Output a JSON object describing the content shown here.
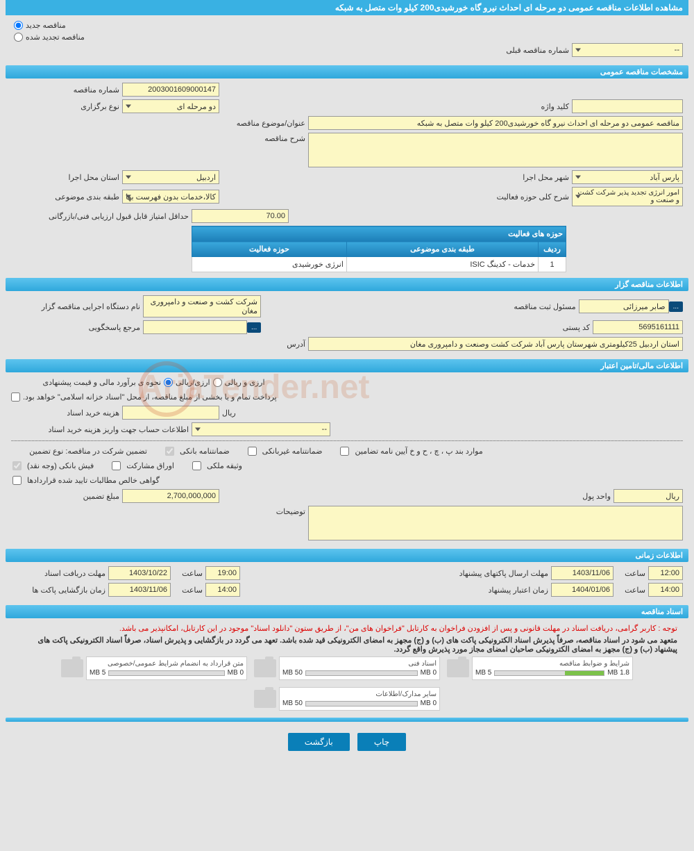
{
  "header": {
    "title": "مشاهده اطلاعات مناقصه عمومی دو مرحله ای احداث نیرو گاه خورشیدی200 کیلو وات متصل به شبکه"
  },
  "tender_type": {
    "new_label": "مناقصه جدید",
    "renewed_label": "مناقصه تجدید شده",
    "prev_number_label": "شماره مناقصه قبلی",
    "prev_number_value": "--"
  },
  "section1": {
    "title": "مشخصات مناقصه عمومی",
    "tender_no_label": "شماره مناقصه",
    "tender_no": "2003001609000147",
    "type_label": "نوع برگزاری",
    "type_value": "دو مرحله ای",
    "keyword_label": "کلید واژه",
    "keyword_value": "",
    "subject_label": "عنوان/موضوع مناقصه",
    "subject_value": "مناقصه عمومی دو مرحله ای احداث نیرو گاه خورشیدی200 کیلو وات متصل به شبکه",
    "desc_label": "شرح مناقصه",
    "desc_value": "",
    "province_label": "استان محل اجرا",
    "province_value": "اردبیل",
    "city_label": "شهر محل اجرا",
    "city_value": "پارس آباد",
    "category_label": "طبقه بندی موضوعی",
    "category_value": "کالا،خدمات بدون فهرست بها",
    "activity_scope_label": "شرح کلی حوزه فعالیت",
    "activity_scope_value": "امور انرژی تجدید پذیر\nشرکت کشت و صنعت و",
    "min_score_label": "حداقل امتیاز قابل قبول ارزیابی فنی/بازرگانی",
    "min_score_value": "70.00",
    "activity_table": {
      "caption": "حوزه های فعالیت",
      "cols": [
        "ردیف",
        "طبقه بندی موضوعی",
        "حوزه فعالیت"
      ],
      "rows": [
        [
          "1",
          "خدمات - کدینگ ISIC",
          "انرژی خورشیدی"
        ]
      ]
    }
  },
  "section2": {
    "title": "اطلاعات مناقصه گزار",
    "org_label": "نام دستگاه اجرایی مناقصه گزار",
    "org_value": "شرکت کشت و صنعت و دامپروری مغان",
    "registrar_label": "مسئول ثبت مناقصه",
    "registrar_value": "صابر میرزائی",
    "responder_label": "مرجع پاسخگویی",
    "responder_value": "",
    "postal_label": "کد پستی",
    "postal_value": "5695161111",
    "address_label": "آدرس",
    "address_value": "استان اردبیل 25کیلومتری شهرستان پارس آباد شرکت کشت وصنعت و دامپروری مغان"
  },
  "section3": {
    "title": "اطلاعات مالی/تامین اعتبار",
    "estimate_label": "نحوه ی برآورد مالی و قیمت پیشنهادی",
    "currency_arzi": "ارزی/ریالی",
    "currency_rial": "ارزی و ریالی",
    "treasury_note": "پرداخت تمام و یا بخشی از مبلغ مناقصه، از محل \"اسناد خزانه اسلامی\" خواهد بود.",
    "doc_fee_label": "هزینه خرید اسناد",
    "doc_fee_value": "",
    "rial": "ریال",
    "account_info_label": "اطلاعات حساب جهت واریز هزینه خرید اسناد",
    "account_info_value": "--",
    "guarantee_type_label": "تضمین شرکت در مناقصه:   نوع تضمین",
    "chk_bank": "ضمانتنامه بانکی",
    "chk_nonbank": "ضمانتنامه غیربانکی",
    "chk_cases": "موارد بند پ ، چ ، ح و خ آیین نامه تضامین",
    "chk_cash": "فیش بانکی (وجه نقد)",
    "chk_bonds": "اوراق مشارکت",
    "chk_property": "وثیقه ملکی",
    "chk_cert": "گواهی خالص مطالبات تایید شده قراردادها",
    "guarantee_amount_label": "مبلغ تضمین",
    "guarantee_amount_value": "2,700,000,000",
    "unit_label": "واحد پول",
    "unit_value": "ریال",
    "notes_label": "توضیحات",
    "notes_value": ""
  },
  "section4": {
    "title": "اطلاعات زمانی",
    "receive_label": "مهلت دریافت اسناد",
    "receive_date": "1403/10/22",
    "receive_time_label": "ساعت",
    "receive_time": "19:00",
    "send_label": "مهلت ارسال پاکتهای پیشنهاد",
    "send_date": "1403/11/06",
    "send_time_label": "ساعت",
    "send_time": "12:00",
    "open_label": "زمان بازگشایی پاکت ها",
    "open_date": "1403/11/06",
    "open_time_label": "ساعت",
    "open_time": "14:00",
    "valid_label": "زمان اعتبار پیشنهاد",
    "valid_date": "1404/01/06",
    "valid_time_label": "ساعت",
    "valid_time": "14:00"
  },
  "section5": {
    "title": "اسناد مناقصه",
    "note1": "توجه : کاربر گرامی، دریافت اسناد در مهلت قانونی و پس از افزودن فراخوان به کارتابل \"فراخوان های من\"، از طریق ستون \"دانلود اسناد\" موجود در این کارتابل، امکانپذیر می باشد.",
    "note2": "متعهد می شود در اسناد مناقصه، صرفاً پذیرش اسناد الکترونیکی پاکت های (ب) و (ج) مجهز به امضای الکترونیکی قید شده باشد. تعهد می گردد در بازگشایی و پذیرش اسناد، صرفاً اسناد الکترونیکی پاکت های پیشنهاد (ب) و (ج) مجهز به امضای الکترونیکی صاحبان امضای مجاز مورد پذیرش واقع گردد.",
    "files": [
      {
        "title": "شرایط و ضوابط مناقصه",
        "used": "1.8 MB",
        "max": "5 MB",
        "fill_pct": 36
      },
      {
        "title": "اسناد فنی",
        "used": "0 MB",
        "max": "50 MB",
        "fill_pct": 0
      },
      {
        "title": "متن قرارداد به انضمام شرایط عمومی/خصوصی",
        "used": "0 MB",
        "max": "5 MB",
        "fill_pct": 0
      },
      {
        "title": "سایر مدارک/اطلاعات",
        "used": "0 MB",
        "max": "50 MB",
        "fill_pct": 0
      }
    ]
  },
  "buttons": {
    "print": "چاپ",
    "back": "بازگشت"
  },
  "colors": {
    "header_bg": "#39b1e3",
    "field_bg": "#fcf8c4",
    "btn_bg": "#0a7fb8"
  }
}
